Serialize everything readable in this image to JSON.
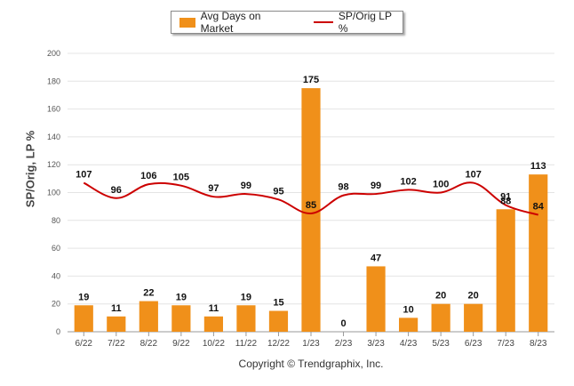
{
  "legend": {
    "bar_label": "Avg Days on Market",
    "line_label": "SP/Orig LP %"
  },
  "copyright": "Copyright © Trendgraphix, Inc.",
  "chart_data": {
    "type": "bar",
    "categories": [
      "6/22",
      "7/22",
      "8/22",
      "9/22",
      "10/22",
      "11/22",
      "12/22",
      "1/23",
      "2/23",
      "3/23",
      "4/23",
      "5/23",
      "6/23",
      "7/23",
      "8/23"
    ],
    "series": [
      {
        "name": "Avg Days on Market",
        "type": "bar",
        "color": "#f0901a",
        "values": [
          19,
          11,
          22,
          19,
          11,
          19,
          15,
          175,
          0,
          47,
          10,
          20,
          20,
          88,
          113
        ]
      },
      {
        "name": "SP/Orig LP %",
        "type": "line",
        "color": "#cc0000",
        "values": [
          107,
          96,
          106,
          105,
          97,
          99,
          95,
          85,
          98,
          99,
          102,
          100,
          107,
          91,
          84
        ]
      }
    ],
    "ylabel": "SP/Orig, LP %",
    "ylim": [
      0,
      200
    ],
    "yticks": [
      0,
      20,
      40,
      60,
      80,
      100,
      120,
      140,
      160,
      180,
      200
    ],
    "grid": true,
    "legend_position": "top-center"
  }
}
